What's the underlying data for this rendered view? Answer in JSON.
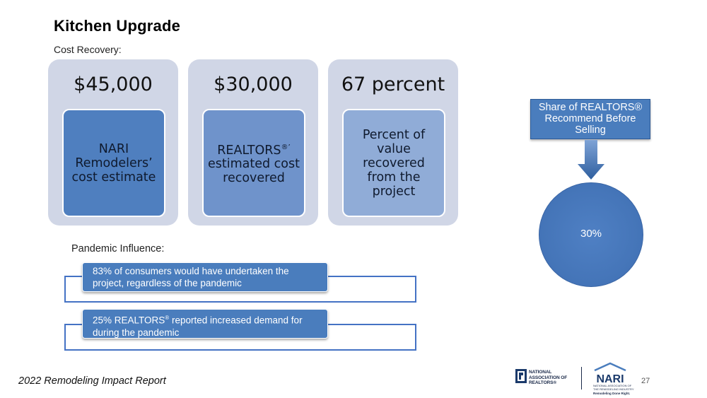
{
  "slide": {
    "title": "Kitchen Upgrade",
    "subtitle": "Cost Recovery:",
    "cards": [
      {
        "value": "$45,000",
        "label": "NARI Remodelers’ cost estimate"
      },
      {
        "value": "$30,000",
        "label_pre": "REALTORS",
        "label_sup": "®’",
        "label_post": " estimated cost recovered"
      },
      {
        "value": "67 percent",
        "label": "Percent of value recovered from the project"
      }
    ],
    "pandemic": {
      "label": "Pandemic Influence:",
      "items": [
        {
          "text": "83% of consumers would have undertaken the project, regardless of the pandemic"
        },
        {
          "pre": "25% REALTORS",
          "sup": "®",
          "post": " reported increased demand for during the pandemic"
        }
      ]
    },
    "share": {
      "box_text": "Share of REALTORS® Recommend Before Selling",
      "value": "30%"
    }
  },
  "footer": {
    "report": "2022 Remodeling Impact Report",
    "nar_logo_text": [
      "NATIONAL",
      "ASSOCIATION OF",
      "REALTORS®"
    ],
    "nari_logo": "NARI",
    "nari_subtext": "NATIONAL ASSOCIATION OF THE REMODELING INDUSTRY",
    "nari_tagline": "Remodeling Done Right.",
    "page": "27"
  },
  "colors": {
    "card_bg": "#d0d6e6",
    "inner_dark": "#4f7fbf",
    "inner_mid": "#6f93cb",
    "inner_light": "#90acd7",
    "bar_blue": "#4a7dbd",
    "bracket_blue": "#4472c4"
  }
}
